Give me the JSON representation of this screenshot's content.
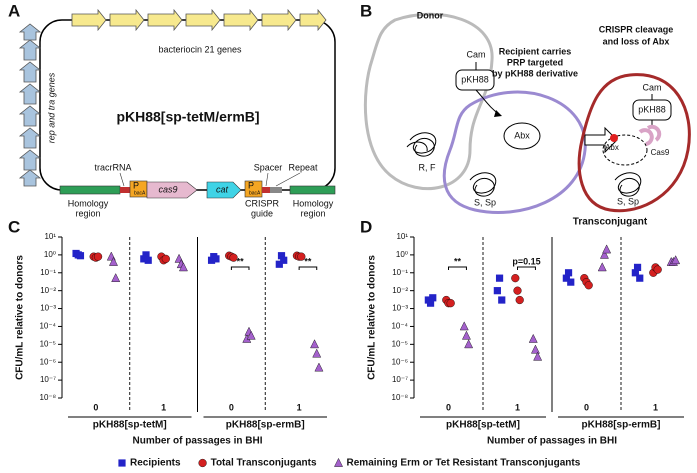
{
  "panel_a": {
    "letter": "A",
    "operon": "bacteriocin 21 genes",
    "side_genes": "rep and tra genes",
    "plasmid": "pKH88[sp-tetM/ermB]",
    "tracr": "tracrRNA",
    "promoter": "P",
    "promoter_sub": "bacA",
    "cas9": "cas9",
    "cat": "cat",
    "spacer": "Spacer",
    "repeat": "Repeat",
    "homology_left": [
      "Homology",
      "region"
    ],
    "guide": [
      "CRISPR",
      "guide"
    ],
    "homology_right": [
      "Homology",
      "region"
    ]
  },
  "panel_b": {
    "letter": "B",
    "donor": "Donor",
    "cam": "Cam",
    "pkh88": "pKH88",
    "donor_chrom": "R, F",
    "recipient": [
      "Recipient carries",
      "PRP targeted",
      "by pKH88 derivative"
    ],
    "abx": "Abx",
    "recipient_chrom": "S, Sp",
    "result": [
      "CRISPR cleavage",
      "and loss of Abx"
    ],
    "t_cam": "Cam",
    "t_pkh88": "pKH88",
    "t_abx": "Abx",
    "t_cas9": "Cas9",
    "t_chrom": "S, Sp",
    "transconjugant": "Transconjugant"
  },
  "chart_data": [
    {
      "type": "scatter",
      "panel": "C",
      "ylabel": "CFU/mL relative to donors",
      "xlabel": "Number of passages in BHI",
      "categories": [
        "0",
        "1",
        "0",
        "1"
      ],
      "groups": [
        "pKH88[sp-tetM]",
        "pKH88[sp-ermB]"
      ],
      "significance": [
        null,
        null,
        "**",
        "**"
      ],
      "log_y": true,
      "ylim": [
        1e-08,
        10
      ],
      "yticks": [
        {
          "value": 10,
          "label": "10¹"
        },
        {
          "value": 1,
          "label": "10⁰"
        },
        {
          "value": 0.1,
          "label": "10⁻¹"
        },
        {
          "value": 0.01,
          "label": "10⁻²"
        },
        {
          "value": 0.001,
          "label": "10⁻³"
        },
        {
          "value": 0.0001,
          "label": "10⁻⁴"
        },
        {
          "value": 1e-05,
          "label": "10⁻⁵"
        },
        {
          "value": 1e-06,
          "label": "10⁻⁶"
        },
        {
          "value": 1e-07,
          "label": "10⁻⁷"
        },
        {
          "value": 1e-08,
          "label": "10⁻⁸"
        }
      ],
      "series": [
        {
          "name": "Recipients",
          "color": "#2323c8",
          "marker": "square",
          "values": [
            [
              1.2,
              1.0,
              0.9
            ],
            [
              0.6,
              1.0,
              0.5
            ],
            [
              0.5,
              0.8,
              0.6
            ],
            [
              0.3,
              0.9,
              0.5
            ]
          ]
        },
        {
          "name": "Total Transconjugants",
          "color": "#d42020",
          "marker": "circle",
          "values": [
            [
              0.8,
              0.7,
              0.8
            ],
            [
              0.8,
              0.5,
              0.6
            ],
            [
              0.9,
              0.8,
              0.7
            ],
            [
              0.9,
              0.8,
              0.8
            ]
          ]
        },
        {
          "name": "Remaining Erm or Tet Resistant Transconjugants",
          "color": "#a461cc",
          "marker": "triangle",
          "values": [
            [
              0.8,
              0.4,
              0.05
            ],
            [
              0.6,
              0.3,
              0.2
            ],
            [
              2e-05,
              5e-05,
              3e-05
            ],
            [
              1e-05,
              3e-06,
              5e-07
            ]
          ]
        }
      ]
    },
    {
      "type": "scatter",
      "panel": "D",
      "ylabel": "CFU/mL relative to donors",
      "xlabel": "Number of passages in BHI",
      "categories": [
        "0",
        "1",
        "0",
        "1"
      ],
      "groups": [
        "pKH88[sp-tetM]",
        "pKH88[sp-ermB]"
      ],
      "significance": [
        "**",
        "p=0.15",
        null,
        null
      ],
      "log_y": true,
      "ylim": [
        1e-08,
        10
      ],
      "yticks": [
        {
          "value": 10,
          "label": "10¹"
        },
        {
          "value": 1,
          "label": "10⁰"
        },
        {
          "value": 0.1,
          "label": "10⁻¹"
        },
        {
          "value": 0.01,
          "label": "10⁻²"
        },
        {
          "value": 0.001,
          "label": "10⁻³"
        },
        {
          "value": 0.0001,
          "label": "10⁻⁴"
        },
        {
          "value": 1e-05,
          "label": "10⁻⁵"
        },
        {
          "value": 1e-06,
          "label": "10⁻⁶"
        },
        {
          "value": 1e-07,
          "label": "10⁻⁷"
        },
        {
          "value": 1e-08,
          "label": "10⁻⁸"
        }
      ],
      "series": [
        {
          "color": "#2323c8",
          "marker": "square",
          "values": [
            [
              0.003,
              0.002,
              0.004
            ],
            [
              0.01,
              0.05,
              0.003
            ],
            [
              0.05,
              0.1,
              0.03
            ],
            [
              0.1,
              0.2,
              0.05
            ]
          ]
        },
        {
          "color": "#d42020",
          "marker": "circle",
          "values": [
            [
              0.003,
              0.002,
              0.002
            ],
            [
              0.05,
              0.01,
              0.003
            ],
            [
              0.05,
              0.03,
              0.02
            ],
            [
              0.1,
              0.2,
              0.15
            ]
          ]
        },
        {
          "color": "#a461cc",
          "marker": "triangle",
          "values": [
            [
              0.0001,
              3e-05,
              1e-05
            ],
            [
              2e-05,
              5e-06,
              2e-06
            ],
            [
              0.2,
              1,
              2
            ],
            [
              0.4,
              0.4,
              0.5
            ]
          ]
        }
      ]
    }
  ]
}
